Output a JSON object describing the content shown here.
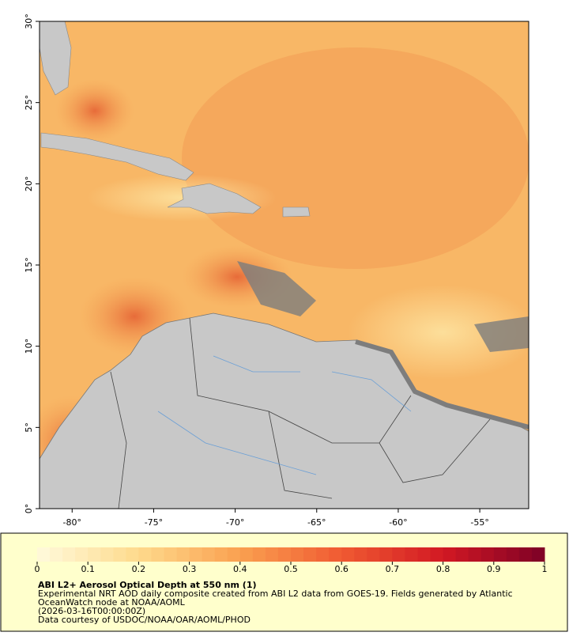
{
  "map": {
    "xaxis": {
      "lim": [
        -82,
        -52
      ],
      "ticks": [
        {
          "value": -80,
          "label": "-80°"
        },
        {
          "value": -75,
          "label": "-75°"
        },
        {
          "value": -70,
          "label": "-70°"
        },
        {
          "value": -65,
          "label": "-65°"
        },
        {
          "value": -60,
          "label": "-60°"
        },
        {
          "value": -55,
          "label": "-55°"
        }
      ]
    },
    "yaxis": {
      "lim": [
        0,
        30
      ],
      "ticks": [
        {
          "value": 0,
          "label": "0°"
        },
        {
          "value": 5,
          "label": "5°"
        },
        {
          "value": 10,
          "label": "10°"
        },
        {
          "value": 15,
          "label": "15°"
        },
        {
          "value": 20,
          "label": "20°"
        },
        {
          "value": 25,
          "label": "25°"
        },
        {
          "value": 30,
          "label": "30°"
        }
      ]
    }
  },
  "colorbar": {
    "lim": [
      0,
      1
    ],
    "ticks": [
      0,
      0.1,
      0.2,
      0.3,
      0.4,
      0.5,
      0.6,
      0.7,
      0.8,
      0.9,
      1
    ]
  },
  "legend": {
    "title": "ABI L2+ Aerosol Optical Depth at 550 nm (1)",
    "lines": [
      "Experimental NRT AOD daily composite created from ABI L2 data from GOES-19. Fields generated by Atlantic",
      "OceanWatch node at NOAA/AOML",
      "(2026-03-16T00:00:00Z)",
      "Data courtesy of USDOC/NOAA/OAR/AOML/PHOD"
    ]
  }
}
